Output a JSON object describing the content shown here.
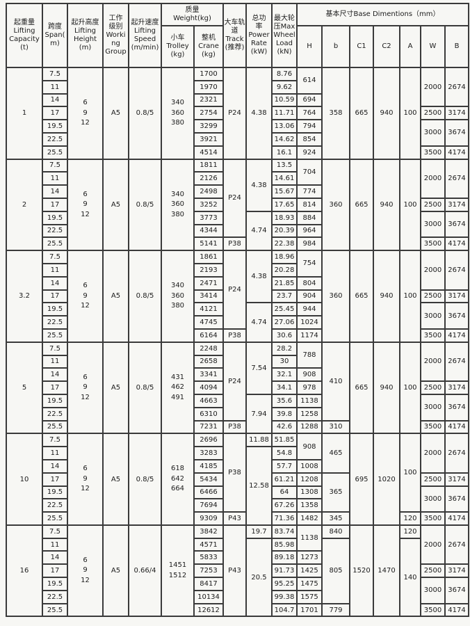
{
  "page": {
    "background_color": "#f7f7f4",
    "border_color": "#3a3a3a",
    "text_color": "#1b1b1b"
  },
  "table": {
    "header": {
      "capacity": "起重量\nLifting\nCapacity\n(t)",
      "span": "跨度\nSpan(\nm)",
      "height": "起升高度\nLifting\nHeight\n(m)",
      "work_group": "工作\n级别\nWorki\nng\nGroup",
      "speed": "起升速度\nLifting\nSpeed\n(m/min)",
      "weight": "质量\nWeight(kg)",
      "trolley": "小车\nTrolley\n(kg)",
      "crane": "整机\nCrane\n(kg)",
      "track": "大车轨\n道\nTrack\n(推荐)",
      "power": "总功\n率\nPower\nRate\n(kW)",
      "wheel": "最大轮\n压Max\nWheel\nLoad\n(kN)",
      "base": "基本尺寸Base Dimentions（mm）",
      "dims": [
        "H",
        "b",
        "C1",
        "C2",
        "A",
        "W",
        "B"
      ]
    },
    "groups": [
      {
        "capacity": "1",
        "spans": [
          "7.5",
          "11",
          "14",
          "17",
          "19.5",
          "22.5",
          "25.5"
        ],
        "height": "6\n9\n12",
        "work_group": "A5",
        "speed": "0.8/5",
        "trolley": "340\n360\n380",
        "crane": [
          "1700",
          "1970",
          "2321",
          "2754",
          "3299",
          "3921",
          "4514"
        ],
        "track": [
          [
            "P24",
            7
          ]
        ],
        "power": [
          [
            "4.38",
            7
          ]
        ],
        "wheel": [
          "8.76",
          "9.62",
          "10.59",
          "11.71",
          "13.06",
          "14.62",
          "16.1"
        ],
        "H": [
          [
            "614",
            2
          ],
          [
            "694",
            1
          ],
          [
            "764",
            1
          ],
          [
            "794",
            1
          ],
          [
            "854",
            1
          ],
          [
            "924",
            1
          ]
        ],
        "b": [
          [
            "358",
            7
          ]
        ],
        "C1": [
          [
            "665",
            7
          ]
        ],
        "C2": [
          [
            "940",
            7
          ]
        ],
        "A": [
          [
            "100",
            7
          ]
        ],
        "W": [
          [
            "2000",
            3
          ],
          [
            "2500",
            1
          ],
          [
            "3000",
            2
          ],
          [
            "3500",
            1
          ]
        ],
        "B": [
          [
            "2674",
            3
          ],
          [
            "3174",
            1
          ],
          [
            "3674",
            2
          ],
          [
            "4174",
            1
          ]
        ]
      },
      {
        "capacity": "2",
        "spans": [
          "7.5",
          "11",
          "14",
          "17",
          "19.5",
          "22.5",
          "25.5"
        ],
        "height": "6\n9\n12",
        "work_group": "A5",
        "speed": "0.8/5",
        "trolley": "340\n360\n380",
        "crane": [
          "1811",
          "2126",
          "2498",
          "3252",
          "3773",
          "4344",
          "5141"
        ],
        "track": [
          [
            "P24",
            6
          ],
          [
            "P38",
            1
          ]
        ],
        "power": [
          [
            "4.38",
            4
          ],
          [
            "4.74",
            3
          ]
        ],
        "wheel": [
          "13.5",
          "14.61",
          "15.67",
          "17.65",
          "18.93",
          "20.39",
          "22.38"
        ],
        "H": [
          [
            "704",
            2
          ],
          [
            "774",
            1
          ],
          [
            "814",
            1
          ],
          [
            "884",
            1
          ],
          [
            "964",
            1
          ],
          [
            "984",
            1
          ]
        ],
        "b": [
          [
            "360",
            7
          ]
        ],
        "C1": [
          [
            "665",
            7
          ]
        ],
        "C2": [
          [
            "940",
            7
          ]
        ],
        "A": [
          [
            "100",
            7
          ]
        ],
        "W": [
          [
            "2000",
            3
          ],
          [
            "2500",
            1
          ],
          [
            "3000",
            2
          ],
          [
            "3500",
            1
          ]
        ],
        "B": [
          [
            "2674",
            3
          ],
          [
            "3174",
            1
          ],
          [
            "3674",
            2
          ],
          [
            "4174",
            1
          ]
        ]
      },
      {
        "capacity": "3.2",
        "spans": [
          "7.5",
          "11",
          "14",
          "17",
          "19.5",
          "22.5",
          "25.5"
        ],
        "height": "6\n9\n12",
        "work_group": "A5",
        "speed": "0.8/5",
        "trolley": "340\n360\n380",
        "crane": [
          "1861",
          "2193",
          "2471",
          "3414",
          "4121",
          "4745",
          "6164"
        ],
        "track": [
          [
            "P24",
            6
          ],
          [
            "P38",
            1
          ]
        ],
        "power": [
          [
            "4.38",
            4
          ],
          [
            "4.74",
            3
          ]
        ],
        "wheel": [
          "18.96",
          "20.28",
          "21.85",
          "23.7",
          "25.45",
          "27.06",
          "30.6"
        ],
        "H": [
          [
            "754",
            2
          ],
          [
            "804",
            1
          ],
          [
            "904",
            1
          ],
          [
            "944",
            1
          ],
          [
            "1024",
            1
          ],
          [
            "1174",
            1
          ]
        ],
        "b": [
          [
            "360",
            7
          ]
        ],
        "C1": [
          [
            "665",
            7
          ]
        ],
        "C2": [
          [
            "940",
            7
          ]
        ],
        "A": [
          [
            "100",
            7
          ]
        ],
        "W": [
          [
            "2000",
            3
          ],
          [
            "2500",
            1
          ],
          [
            "3000",
            2
          ],
          [
            "3500",
            1
          ]
        ],
        "B": [
          [
            "2674",
            3
          ],
          [
            "3174",
            1
          ],
          [
            "3674",
            2
          ],
          [
            "4174",
            1
          ]
        ]
      },
      {
        "capacity": "5",
        "spans": [
          "7.5",
          "11",
          "14",
          "17",
          "19.5",
          "22.5",
          "25.5"
        ],
        "height": "6\n9\n12",
        "work_group": "A5",
        "speed": "0.8/5",
        "trolley": "431\n462\n491",
        "crane": [
          "2248",
          "2658",
          "3341",
          "4094",
          "4663",
          "6310",
          "7231"
        ],
        "track": [
          [
            "P24",
            6
          ],
          [
            "P38",
            1
          ]
        ],
        "power": [
          [
            "7.54",
            4
          ],
          [
            "7.94",
            3
          ]
        ],
        "wheel": [
          "28.2",
          "30",
          "32.1",
          "34.1",
          "35.6",
          "39.8",
          "42.6"
        ],
        "H": [
          [
            "788",
            2
          ],
          [
            "908",
            1
          ],
          [
            "978",
            1
          ],
          [
            "1138",
            1
          ],
          [
            "1258",
            1
          ],
          [
            "1288",
            1
          ]
        ],
        "b": [
          [
            "410",
            6
          ],
          [
            "310",
            1
          ]
        ],
        "C1": [
          [
            "665",
            7
          ]
        ],
        "C2": [
          [
            "940",
            7
          ]
        ],
        "A": [
          [
            "100",
            7
          ]
        ],
        "W": [
          [
            "2000",
            3
          ],
          [
            "2500",
            1
          ],
          [
            "3000",
            2
          ],
          [
            "3500",
            1
          ]
        ],
        "B": [
          [
            "2674",
            3
          ],
          [
            "3174",
            1
          ],
          [
            "3674",
            2
          ],
          [
            "4174",
            1
          ]
        ]
      },
      {
        "capacity": "10",
        "spans": [
          "7.5",
          "11",
          "14",
          "17",
          "19.5",
          "22.5",
          "25.5"
        ],
        "height": "6\n9\n12",
        "work_group": "A5",
        "speed": "0.8/5",
        "trolley": "618\n642\n664",
        "crane": [
          "2696",
          "3283",
          "4185",
          "5434",
          "6466",
          "7694",
          "9309"
        ],
        "track": [
          [
            "P38",
            6
          ],
          [
            "P43",
            1
          ]
        ],
        "power": [
          [
            "11.88",
            1
          ],
          [
            "12.58",
            6
          ]
        ],
        "wheel": [
          "51.85",
          "54.8",
          "57.7",
          "61.21",
          "64",
          "67.26",
          "71.36"
        ],
        "H": [
          [
            "908",
            2
          ],
          [
            "1008",
            1
          ],
          [
            "1208",
            1
          ],
          [
            "1308",
            1
          ],
          [
            "1358",
            1
          ],
          [
            "1482",
            1
          ]
        ],
        "b": [
          [
            "465",
            3
          ],
          [
            "365",
            3
          ],
          [
            "345",
            1
          ]
        ],
        "C1": [
          [
            "695",
            7
          ]
        ],
        "C2": [
          [
            "1020",
            7
          ]
        ],
        "A": [
          [
            "100",
            6
          ],
          [
            "120",
            1
          ]
        ],
        "W": [
          [
            "2000",
            3
          ],
          [
            "2500",
            1
          ],
          [
            "3000",
            2
          ],
          [
            "3500",
            1
          ]
        ],
        "B": [
          [
            "2674",
            3
          ],
          [
            "3174",
            1
          ],
          [
            "3674",
            2
          ],
          [
            "4174",
            1
          ]
        ]
      },
      {
        "capacity": "16",
        "spans": [
          "7.5",
          "11",
          "14",
          "17",
          "19.5",
          "22.5",
          "25.5"
        ],
        "height": "6\n9\n12",
        "work_group": "A5",
        "speed": "0.66/4",
        "trolley": "1451\n1512",
        "crane": [
          "3842",
          "4571",
          "5833",
          "7253",
          "8417",
          "10134",
          "12612"
        ],
        "track": [
          [
            "P43",
            7
          ]
        ],
        "power": [
          [
            "19.7",
            1
          ],
          [
            "20.5",
            6
          ]
        ],
        "wheel": [
          "83.74",
          "85.98",
          "89.18",
          "91.73",
          "95.25",
          "99.38",
          "104.7"
        ],
        "H": [
          [
            "1138",
            2
          ],
          [
            "1273",
            1
          ],
          [
            "1425",
            1
          ],
          [
            "1475",
            1
          ],
          [
            "1575",
            1
          ],
          [
            "1701",
            1
          ]
        ],
        "b": [
          [
            "840",
            1
          ],
          [
            "805",
            5
          ],
          [
            "779",
            1
          ]
        ],
        "C1": [
          [
            "1520",
            7
          ]
        ],
        "C2": [
          [
            "1470",
            7
          ]
        ],
        "A": [
          [
            "120",
            1
          ],
          [
            "140",
            6
          ]
        ],
        "W": [
          [
            "2000",
            3
          ],
          [
            "2500",
            1
          ],
          [
            "3000",
            2
          ],
          [
            "3500",
            1
          ]
        ],
        "B": [
          [
            "2674",
            3
          ],
          [
            "3174",
            1
          ],
          [
            "3674",
            2
          ],
          [
            "4174",
            1
          ]
        ]
      }
    ]
  }
}
